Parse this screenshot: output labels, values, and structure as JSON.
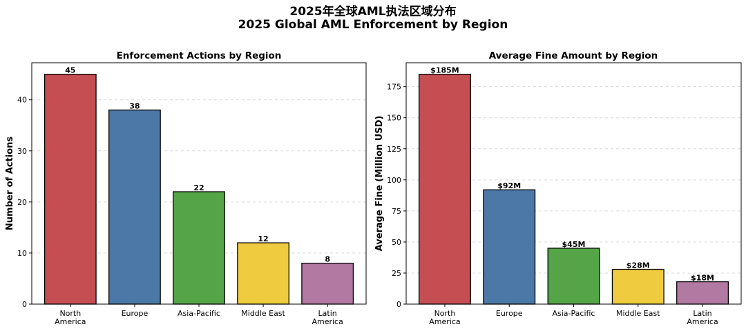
{
  "title": {
    "line1": "2025年全球AML执法区域分布",
    "line2": "2025 Global AML Enforcement by Region"
  },
  "chart_data": [
    {
      "type": "bar",
      "title": "Enforcement Actions by Region",
      "xlabel": "",
      "ylabel": "Number of Actions",
      "categories": [
        "North\nAmerica",
        "Europe",
        "Asia-Pacific",
        "Middle East",
        "Latin\nAmerica"
      ],
      "values": [
        45,
        38,
        22,
        12,
        8
      ],
      "value_labels": [
        "45",
        "38",
        "22",
        "12",
        "8"
      ],
      "ylim": [
        0,
        47.25
      ],
      "yticks": [
        0,
        10,
        20,
        30,
        40
      ],
      "colors": [
        "#c44e52",
        "#4c78a8",
        "#55a548",
        "#eecb3f",
        "#b279a2"
      ],
      "grid": true
    },
    {
      "type": "bar",
      "title": "Average Fine Amount by Region",
      "xlabel": "",
      "ylabel": "Average Fine (Million USD)",
      "categories": [
        "North\nAmerica",
        "Europe",
        "Asia-Pacific",
        "Middle East",
        "Latin\nAmerica"
      ],
      "values": [
        185,
        92,
        45,
        28,
        18
      ],
      "value_labels": [
        "$185M",
        "$92M",
        "$45M",
        "$28M",
        "$18M"
      ],
      "ylim": [
        0,
        194.25
      ],
      "yticks": [
        0,
        25,
        50,
        75,
        100,
        125,
        150,
        175
      ],
      "colors": [
        "#c44e52",
        "#4c78a8",
        "#55a548",
        "#eecb3f",
        "#b279a2"
      ],
      "grid": true
    }
  ]
}
